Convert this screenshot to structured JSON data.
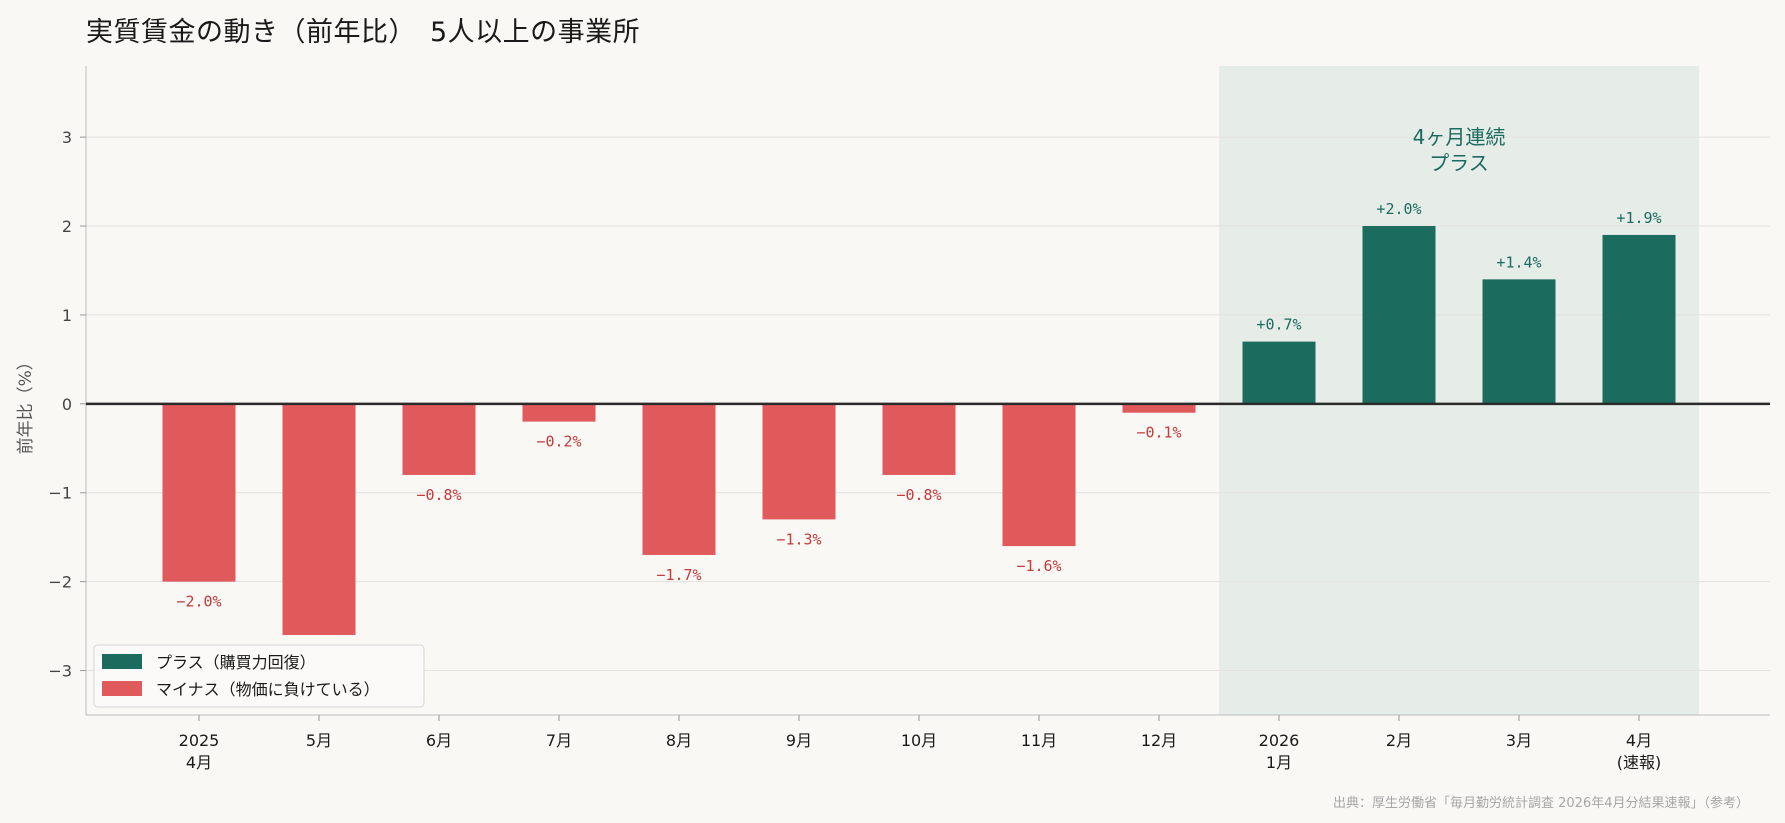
{
  "title": "実質賃金の動き（前年比）　5人以上の事業所",
  "source": "出典：厚生労働省「毎月勤労統計調査 2026年4月分結果速報」（参考）",
  "chart_data": {
    "type": "bar",
    "ylabel": "前年比（%）",
    "ylim": [
      -3.5,
      3.8
    ],
    "yticks": [
      -3,
      -2,
      -1,
      0,
      1,
      2,
      3
    ],
    "ytick_labels": [
      "−3",
      "−2",
      "−1",
      "0",
      "1",
      "2",
      "3"
    ],
    "grid": true,
    "categories": [
      [
        "2025",
        "4月"
      ],
      [
        "5月"
      ],
      [
        "6月"
      ],
      [
        "7月"
      ],
      [
        "8月"
      ],
      [
        "9月"
      ],
      [
        "10月"
      ],
      [
        "11月"
      ],
      [
        "12月"
      ],
      [
        "2026",
        "1月"
      ],
      [
        "2月"
      ],
      [
        "3月"
      ],
      [
        "4月",
        "(速報)"
      ]
    ],
    "values": [
      -2.0,
      -2.6,
      -0.8,
      -0.2,
      -1.7,
      -1.3,
      -0.8,
      -1.6,
      -0.1,
      0.7,
      2.0,
      1.4,
      1.9
    ],
    "data_labels": [
      "−2.0%",
      "−2.6%",
      "−0.8%",
      "−0.2%",
      "−1.7%",
      "−1.3%",
      "−0.8%",
      "−1.6%",
      "−0.1%",
      "+0.7%",
      "+2.0%",
      "+1.4%",
      "+1.9%"
    ],
    "highlight_span": {
      "from_index": 9,
      "to_index": 12
    },
    "annotation": [
      "4ヶ月連続",
      "プラス"
    ],
    "legend": {
      "placement": "lower-left",
      "entries": [
        {
          "label": "プラス（購買力回復）",
          "color": "#1b6b5e"
        },
        {
          "label": "マイナス（物価に負けている）",
          "color": "#e05a5c"
        }
      ]
    },
    "colors": {
      "positive": "#1b6b5e",
      "negative": "#e05a5c",
      "positive_label": "#1b6b5e",
      "negative_label": "#c23b3b",
      "highlight": "#e6ece8"
    }
  }
}
